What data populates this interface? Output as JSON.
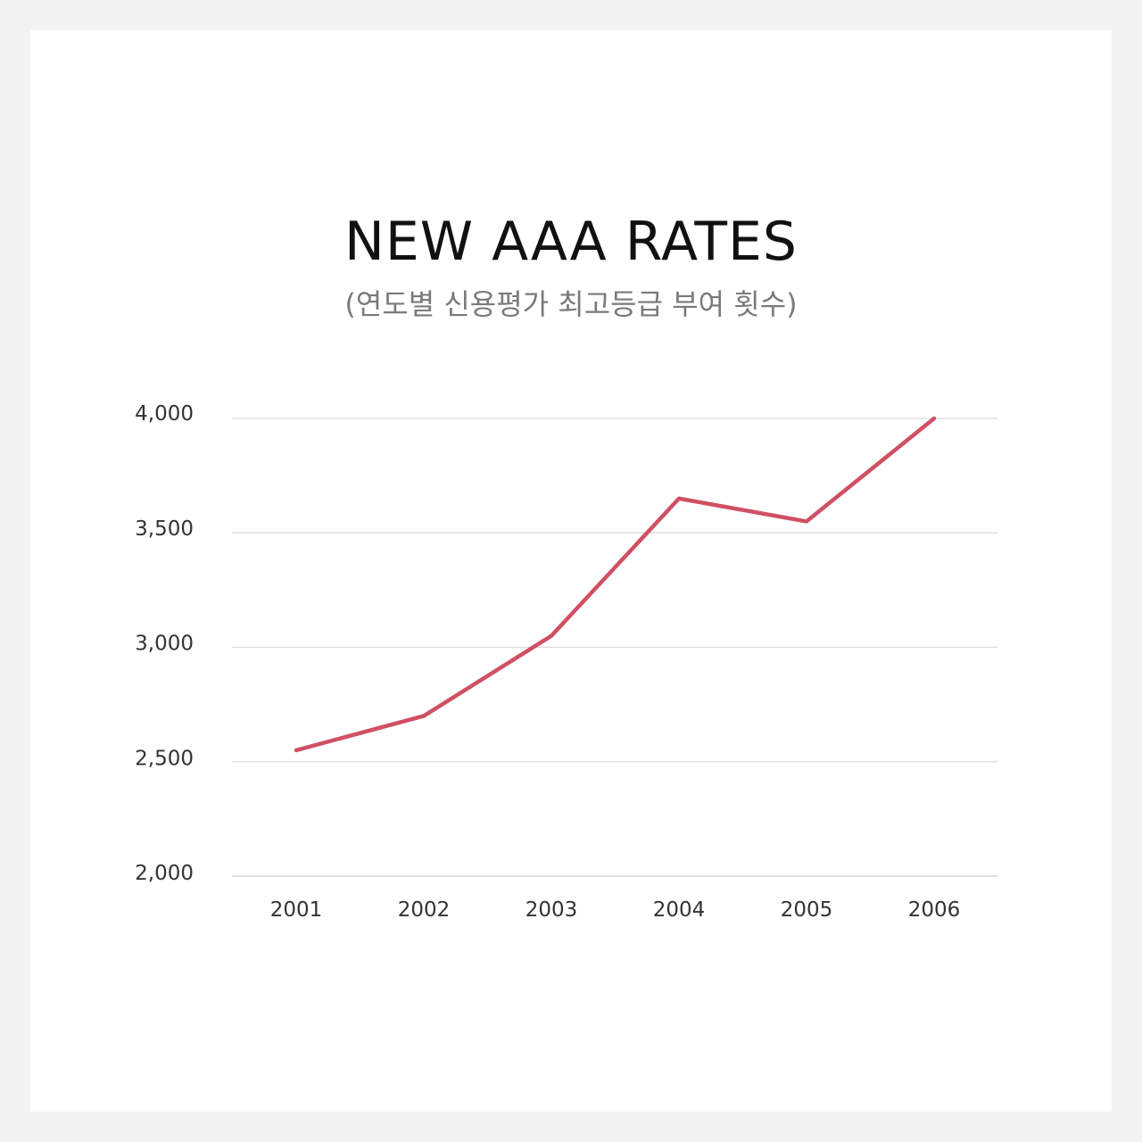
{
  "chart_data": {
    "type": "line",
    "title": "NEW AAA RATES",
    "subtitle": "(연도별 신용평가 최고등급 부여 횟수)",
    "xlabel": "",
    "ylabel": "",
    "categories": [
      "2001",
      "2002",
      "2003",
      "2004",
      "2005",
      "2006"
    ],
    "series": [
      {
        "values": [
          2550,
          2700,
          3050,
          3650,
          3550,
          4000
        ]
      }
    ],
    "ylim": [
      2000,
      4000
    ],
    "yticks": [
      2000,
      2500,
      3000,
      3500,
      4000
    ],
    "ytick_labels": [
      "2,000",
      "2,500",
      "3,000",
      "3,500",
      "4,000"
    ],
    "grid": true,
    "legend": "none",
    "colors": {
      "line": "#d05063",
      "grid": "#d9d9d9",
      "axis": "#d9d9d9"
    }
  }
}
